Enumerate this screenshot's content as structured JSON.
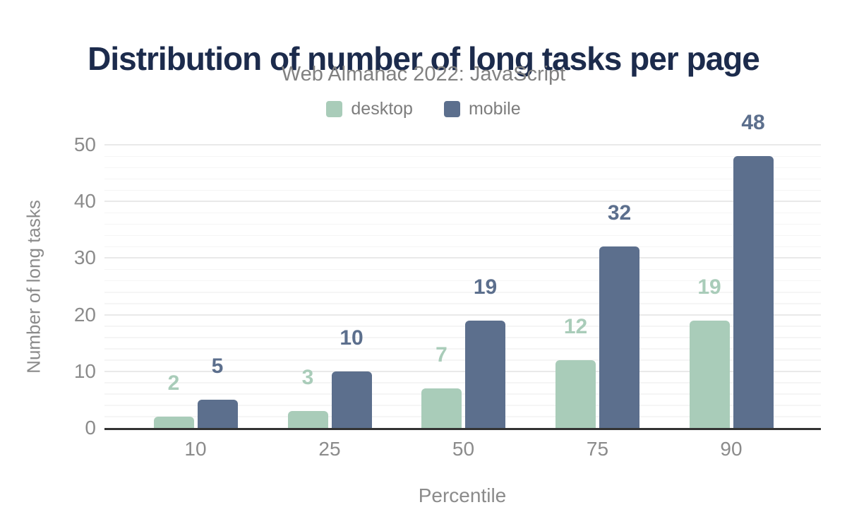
{
  "header": {
    "title": "Distribution of number of long tasks per page",
    "subtitle": "Web Almanac 2022: JavaScript"
  },
  "chart_data": {
    "type": "bar",
    "title": "Distribution of number of long tasks per page",
    "subtitle": "Web Almanac 2022: JavaScript",
    "categories": [
      "10",
      "25",
      "50",
      "75",
      "90"
    ],
    "series": [
      {
        "name": "desktop",
        "color": "#a9ccb9",
        "values": [
          2,
          3,
          7,
          12,
          19
        ]
      },
      {
        "name": "mobile",
        "color": "#5c6f8d",
        "values": [
          5,
          10,
          19,
          32,
          48
        ]
      }
    ],
    "xlabel": "Percentile",
    "ylabel": "Number of long tasks",
    "ylim": [
      0,
      50
    ],
    "yticks": [
      0,
      10,
      20,
      30,
      40,
      50
    ],
    "minor_grid_step": 2,
    "grid": true,
    "legend_position": "top",
    "value_labels": true
  },
  "colors": {
    "background": "#ffffff",
    "title": "#1c2b4c",
    "subtitle": "#818181",
    "legend_text": "#7d7d7d",
    "axis_text": "#8b8b8b",
    "axis_line": "#333333",
    "grid_major": "#e9e9e9",
    "grid_minor": "#f5f5f5",
    "desktop": "#a9ccb9",
    "mobile": "#5c6f8d"
  }
}
